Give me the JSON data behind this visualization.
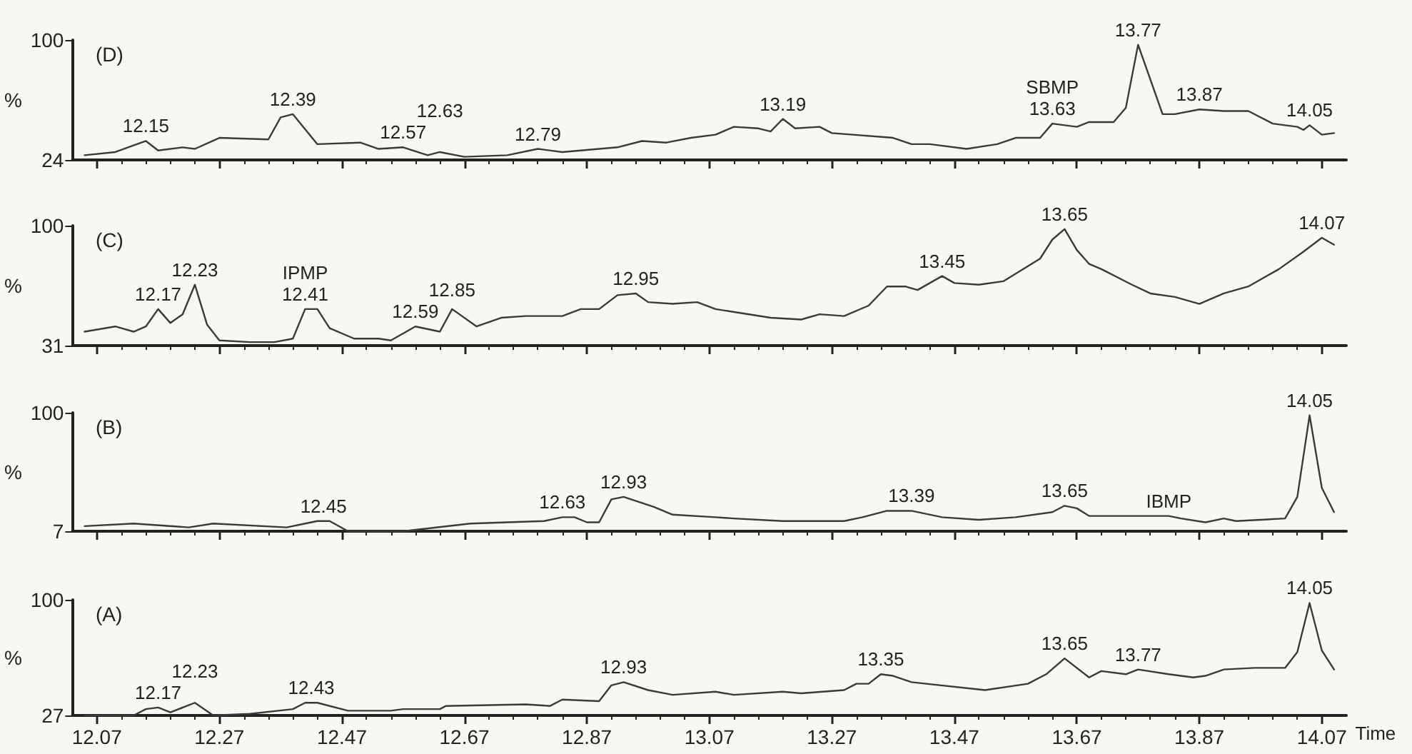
{
  "chart_data": [
    {
      "type": "line",
      "title": "(D)",
      "ylabel": "%",
      "color": "#3a3a3a",
      "marker": "none",
      "tick_labels": "y",
      "xlim": [
        12.03,
        14.11
      ],
      "ylim": [
        24,
        100
      ],
      "yticks": [
        24,
        100
      ],
      "xticks": [
        12.07,
        {
          "value": 12.11,
          "label": null
        },
        {
          "value": 12.15,
          "label": null
        },
        {
          "value": 12.19,
          "label": null
        },
        {
          "value": 12.23,
          "label": null
        },
        12.27,
        {
          "value": 12.31,
          "label": null
        },
        {
          "value": 12.35,
          "label": null
        },
        {
          "value": 12.39,
          "label": null
        },
        {
          "value": 12.43,
          "label": null
        },
        12.47,
        {
          "value": 12.51,
          "label": null
        },
        {
          "value": 12.55,
          "label": null
        },
        {
          "value": 12.59,
          "label": null
        },
        {
          "value": 12.63,
          "label": null
        },
        12.67,
        {
          "value": 12.71,
          "label": null
        },
        {
          "value": 12.75,
          "label": null
        },
        {
          "value": 12.79,
          "label": null
        },
        {
          "value": 12.83,
          "label": null
        },
        12.87,
        {
          "value": 12.91,
          "label": null
        },
        {
          "value": 12.95,
          "label": null
        },
        {
          "value": 12.99,
          "label": null
        },
        {
          "value": 13.03,
          "label": null
        },
        13.07,
        {
          "value": 13.11,
          "label": null
        },
        {
          "value": 13.15,
          "label": null
        },
        {
          "value": 13.19,
          "label": null
        },
        {
          "value": 13.23,
          "label": null
        },
        13.27,
        {
          "value": 13.31,
          "label": null
        },
        {
          "value": 13.35,
          "label": null
        },
        {
          "value": 13.39,
          "label": null
        },
        {
          "value": 13.43,
          "label": null
        },
        13.47,
        {
          "value": 13.51,
          "label": null
        },
        {
          "value": 13.55,
          "label": null
        },
        {
          "value": 13.59,
          "label": null
        },
        {
          "value": 13.63,
          "label": null
        },
        13.67,
        {
          "value": 13.71,
          "label": null
        },
        {
          "value": 13.75,
          "label": null
        },
        {
          "value": 13.79,
          "label": null
        },
        {
          "value": 13.83,
          "label": null
        },
        13.87,
        {
          "value": 13.91,
          "label": null
        },
        {
          "value": 13.95,
          "label": null
        },
        {
          "value": 13.99,
          "label": null
        },
        {
          "value": 14.03,
          "label": null
        },
        14.07
      ],
      "x": [
        12.05,
        12.1,
        12.15,
        12.17,
        12.21,
        12.23,
        12.27,
        12.35,
        12.37,
        12.39,
        12.43,
        12.5,
        12.53,
        12.57,
        12.61,
        12.63,
        12.67,
        12.74,
        12.79,
        12.83,
        12.92,
        12.96,
        13.0,
        13.04,
        13.08,
        13.11,
        13.15,
        13.17,
        13.19,
        13.21,
        13.25,
        13.27,
        13.37,
        13.4,
        13.43,
        13.49,
        13.54,
        13.57,
        13.61,
        13.63,
        13.67,
        13.69,
        13.73,
        13.75,
        13.77,
        13.81,
        13.83,
        13.87,
        13.91,
        13.95,
        13.99,
        14.03,
        14.04,
        14.05,
        14.07,
        14.09
      ],
      "values": [
        27,
        29,
        36,
        30,
        32,
        31,
        38,
        37,
        51,
        53,
        34,
        35,
        31,
        32,
        27,
        29,
        26,
        27,
        31,
        29,
        32,
        36,
        35,
        38,
        40,
        45,
        44,
        42,
        50,
        44,
        45,
        41,
        38,
        34,
        34,
        31,
        34,
        38,
        38,
        47,
        45,
        48,
        48,
        57,
        97,
        53,
        53,
        56,
        55,
        55,
        47,
        45,
        43,
        46,
        40,
        41
      ],
      "annotations": [
        {
          "text": "12.15",
          "x": 12.15,
          "y": 36
        },
        {
          "text": "12.39",
          "x": 12.39,
          "y": 53
        },
        {
          "text": "12.57",
          "x": 12.57,
          "y": 32
        },
        {
          "text": "12.63",
          "x": 12.63,
          "y": 29
        },
        {
          "text": "12.79",
          "x": 12.79,
          "y": 31
        },
        {
          "text": "13.19",
          "x": 13.19,
          "y": 50
        },
        {
          "text": "13.63",
          "x": 13.63,
          "y": 47
        },
        {
          "text": "SBMP",
          "x": 13.63,
          "y": 47
        },
        {
          "text": "13.77",
          "x": 13.77,
          "y": 97
        },
        {
          "text": "13.87",
          "x": 13.87,
          "y": 56
        },
        {
          "text": "14.05",
          "x": 14.05,
          "y": 46
        }
      ]
    },
    {
      "type": "line",
      "title": "(C)",
      "ylabel": "%",
      "color": "#3a3a3a",
      "marker": "none",
      "tick_labels": "y",
      "xlim": [
        12.03,
        14.11
      ],
      "ylim": [
        31,
        100
      ],
      "yticks": [
        31,
        100
      ],
      "xticks": [
        12.07,
        {
          "value": 12.11,
          "label": null
        },
        {
          "value": 12.15,
          "label": null
        },
        {
          "value": 12.19,
          "label": null
        },
        {
          "value": 12.23,
          "label": null
        },
        12.27,
        {
          "value": 12.31,
          "label": null
        },
        {
          "value": 12.35,
          "label": null
        },
        {
          "value": 12.39,
          "label": null
        },
        {
          "value": 12.43,
          "label": null
        },
        12.47,
        {
          "value": 12.51,
          "label": null
        },
        {
          "value": 12.55,
          "label": null
        },
        {
          "value": 12.59,
          "label": null
        },
        {
          "value": 12.63,
          "label": null
        },
        12.67,
        {
          "value": 12.71,
          "label": null
        },
        {
          "value": 12.75,
          "label": null
        },
        {
          "value": 12.79,
          "label": null
        },
        {
          "value": 12.83,
          "label": null
        },
        12.87,
        {
          "value": 12.91,
          "label": null
        },
        {
          "value": 12.95,
          "label": null
        },
        {
          "value": 12.99,
          "label": null
        },
        {
          "value": 13.03,
          "label": null
        },
        13.07,
        {
          "value": 13.11,
          "label": null
        },
        {
          "value": 13.15,
          "label": null
        },
        {
          "value": 13.19,
          "label": null
        },
        {
          "value": 13.23,
          "label": null
        },
        13.27,
        {
          "value": 13.31,
          "label": null
        },
        {
          "value": 13.35,
          "label": null
        },
        {
          "value": 13.39,
          "label": null
        },
        {
          "value": 13.43,
          "label": null
        },
        13.47,
        {
          "value": 13.51,
          "label": null
        },
        {
          "value": 13.55,
          "label": null
        },
        {
          "value": 13.59,
          "label": null
        },
        {
          "value": 13.63,
          "label": null
        },
        13.67,
        {
          "value": 13.71,
          "label": null
        },
        {
          "value": 13.75,
          "label": null
        },
        {
          "value": 13.79,
          "label": null
        },
        {
          "value": 13.83,
          "label": null
        },
        13.87,
        {
          "value": 13.91,
          "label": null
        },
        {
          "value": 13.95,
          "label": null
        },
        {
          "value": 13.99,
          "label": null
        },
        {
          "value": 14.03,
          "label": null
        },
        14.07
      ],
      "x": [
        12.05,
        12.1,
        12.13,
        12.15,
        12.17,
        12.19,
        12.21,
        12.23,
        12.25,
        12.27,
        12.32,
        12.36,
        12.39,
        12.41,
        12.43,
        12.45,
        12.49,
        12.53,
        12.55,
        12.57,
        12.59,
        12.63,
        12.65,
        12.69,
        12.73,
        12.77,
        12.83,
        12.86,
        12.89,
        12.92,
        12.95,
        12.97,
        13.01,
        13.05,
        13.08,
        13.17,
        13.22,
        13.25,
        13.29,
        13.33,
        13.36,
        13.39,
        13.41,
        13.45,
        13.47,
        13.51,
        13.55,
        13.61,
        13.63,
        13.65,
        13.67,
        13.69,
        13.71,
        13.76,
        13.79,
        13.83,
        13.87,
        13.91,
        13.95,
        14.0,
        14.04,
        14.07,
        14.09
      ],
      "values": [
        39,
        42,
        39,
        42,
        52,
        44,
        49,
        66,
        43,
        34,
        33,
        33,
        35,
        52,
        52,
        41,
        35,
        35,
        34,
        38,
        42,
        39,
        52,
        42,
        47,
        48,
        48,
        52,
        52,
        60,
        61,
        56,
        55,
        56,
        52,
        47,
        46,
        49,
        48,
        54,
        65,
        65,
        63,
        71,
        67,
        66,
        68,
        81,
        92,
        98,
        86,
        78,
        75,
        66,
        61,
        59,
        55,
        61,
        65,
        75,
        85,
        93,
        89
      ],
      "annotations": [
        {
          "text": "12.17",
          "x": 12.17,
          "y": 52
        },
        {
          "text": "12.23",
          "x": 12.23,
          "y": 66
        },
        {
          "text": "12.41",
          "x": 12.41,
          "y": 52
        },
        {
          "text": "IPMP",
          "x": 12.41,
          "y": 52
        },
        {
          "text": "12.59",
          "x": 12.59,
          "y": 42
        },
        {
          "text": "12.85",
          "x": 12.65,
          "y": 52
        },
        {
          "text": "12.95",
          "x": 12.95,
          "y": 61
        },
        {
          "text": "13.45",
          "x": 13.45,
          "y": 71
        },
        {
          "text": "13.65",
          "x": 13.65,
          "y": 98
        },
        {
          "text": "14.07",
          "x": 14.07,
          "y": 93
        }
      ]
    },
    {
      "type": "line",
      "title": "(B)",
      "ylabel": "%",
      "color": "#3a3a3a",
      "marker": "none",
      "tick_labels": "y",
      "xlim": [
        12.03,
        14.11
      ],
      "ylim": [
        7,
        100
      ],
      "yticks": [
        7,
        100
      ],
      "xticks": [
        12.07,
        {
          "value": 12.11,
          "label": null
        },
        {
          "value": 12.15,
          "label": null
        },
        {
          "value": 12.19,
          "label": null
        },
        {
          "value": 12.23,
          "label": null
        },
        12.27,
        {
          "value": 12.31,
          "label": null
        },
        {
          "value": 12.35,
          "label": null
        },
        {
          "value": 12.39,
          "label": null
        },
        {
          "value": 12.43,
          "label": null
        },
        12.47,
        {
          "value": 12.51,
          "label": null
        },
        {
          "value": 12.55,
          "label": null
        },
        {
          "value": 12.59,
          "label": null
        },
        {
          "value": 12.63,
          "label": null
        },
        12.67,
        {
          "value": 12.71,
          "label": null
        },
        {
          "value": 12.75,
          "label": null
        },
        {
          "value": 12.79,
          "label": null
        },
        {
          "value": 12.83,
          "label": null
        },
        12.87,
        {
          "value": 12.91,
          "label": null
        },
        {
          "value": 12.95,
          "label": null
        },
        {
          "value": 12.99,
          "label": null
        },
        {
          "value": 13.03,
          "label": null
        },
        13.07,
        {
          "value": 13.11,
          "label": null
        },
        {
          "value": 13.15,
          "label": null
        },
        {
          "value": 13.19,
          "label": null
        },
        {
          "value": 13.23,
          "label": null
        },
        13.27,
        {
          "value": 13.31,
          "label": null
        },
        {
          "value": 13.35,
          "label": null
        },
        {
          "value": 13.39,
          "label": null
        },
        {
          "value": 13.43,
          "label": null
        },
        13.47,
        {
          "value": 13.51,
          "label": null
        },
        {
          "value": 13.55,
          "label": null
        },
        {
          "value": 13.59,
          "label": null
        },
        {
          "value": 13.63,
          "label": null
        },
        13.67,
        {
          "value": 13.71,
          "label": null
        },
        {
          "value": 13.75,
          "label": null
        },
        {
          "value": 13.79,
          "label": null
        },
        {
          "value": 13.83,
          "label": null
        },
        13.87,
        {
          "value": 13.91,
          "label": null
        },
        {
          "value": 13.95,
          "label": null
        },
        {
          "value": 13.99,
          "label": null
        },
        {
          "value": 14.03,
          "label": null
        },
        14.07
      ],
      "x": [
        12.05,
        12.13,
        12.22,
        12.26,
        12.38,
        12.41,
        12.43,
        12.45,
        12.48,
        12.57,
        12.68,
        12.8,
        12.83,
        12.85,
        12.87,
        12.89,
        12.91,
        12.93,
        12.98,
        13.01,
        13.08,
        13.11,
        13.19,
        13.29,
        13.32,
        13.36,
        13.4,
        13.45,
        13.51,
        13.57,
        13.63,
        13.65,
        13.67,
        13.69,
        13.76,
        13.82,
        13.84,
        13.88,
        13.91,
        13.93,
        14.01,
        14.03,
        14.05,
        14.07,
        14.09
      ],
      "values": [
        11,
        13,
        10,
        13,
        10,
        13,
        15,
        15,
        7,
        7,
        13,
        15,
        18,
        18,
        14,
        14,
        32,
        34,
        26,
        20,
        18,
        17,
        15,
        15,
        18,
        23,
        23,
        18,
        16,
        18,
        22,
        27,
        25,
        19,
        19,
        19,
        17,
        14,
        17,
        15,
        17,
        34,
        98,
        41,
        22
      ],
      "annotations": [
        {
          "text": "12.45",
          "x": 12.44,
          "y": 15
        },
        {
          "text": "12.63",
          "x": 12.83,
          "y": 18
        },
        {
          "text": "12.93",
          "x": 12.93,
          "y": 34
        },
        {
          "text": "13.39",
          "x": 13.4,
          "y": 23
        },
        {
          "text": "13.65",
          "x": 13.65,
          "y": 27
        },
        {
          "text": "IBMP",
          "x": 13.82,
          "y": 19
        },
        {
          "text": "14.05",
          "x": 14.05,
          "y": 98
        }
      ]
    },
    {
      "type": "line",
      "title": "(A)",
      "ylabel": "%",
      "xlabel": "Time",
      "color": "#3a3a3a",
      "marker": "none",
      "xlim": [
        12.03,
        14.11
      ],
      "ylim": [
        27,
        100
      ],
      "yticks": [
        27,
        100
      ],
      "xticks": [
        12.07,
        {
          "value": 12.11,
          "label": null
        },
        {
          "value": 12.15,
          "label": null
        },
        {
          "value": 12.19,
          "label": null
        },
        {
          "value": 12.23,
          "label": null
        },
        12.27,
        {
          "value": 12.31,
          "label": null
        },
        {
          "value": 12.35,
          "label": null
        },
        {
          "value": 12.39,
          "label": null
        },
        {
          "value": 12.43,
          "label": null
        },
        12.47,
        {
          "value": 12.51,
          "label": null
        },
        {
          "value": 12.55,
          "label": null
        },
        {
          "value": 12.59,
          "label": null
        },
        {
          "value": 12.63,
          "label": null
        },
        12.67,
        {
          "value": 12.71,
          "label": null
        },
        {
          "value": 12.75,
          "label": null
        },
        {
          "value": 12.79,
          "label": null
        },
        {
          "value": 12.83,
          "label": null
        },
        12.87,
        {
          "value": 12.91,
          "label": null
        },
        {
          "value": 12.95,
          "label": null
        },
        {
          "value": 12.99,
          "label": null
        },
        {
          "value": 13.03,
          "label": null
        },
        13.07,
        {
          "value": 13.11,
          "label": null
        },
        {
          "value": 13.15,
          "label": null
        },
        {
          "value": 13.19,
          "label": null
        },
        {
          "value": 13.23,
          "label": null
        },
        13.27,
        {
          "value": 13.31,
          "label": null
        },
        {
          "value": 13.35,
          "label": null
        },
        {
          "value": 13.39,
          "label": null
        },
        {
          "value": 13.43,
          "label": null
        },
        13.47,
        {
          "value": 13.51,
          "label": null
        },
        {
          "value": 13.55,
          "label": null
        },
        {
          "value": 13.59,
          "label": null
        },
        {
          "value": 13.63,
          "label": null
        },
        13.67,
        {
          "value": 13.71,
          "label": null
        },
        {
          "value": 13.75,
          "label": null
        },
        {
          "value": 13.79,
          "label": null
        },
        {
          "value": 13.83,
          "label": null
        },
        13.87,
        {
          "value": 13.91,
          "label": null
        },
        {
          "value": 13.95,
          "label": null
        },
        {
          "value": 13.99,
          "label": null
        },
        {
          "value": 14.03,
          "label": null
        },
        14.07
      ],
      "x": [
        12.05,
        12.13,
        12.15,
        12.17,
        12.19,
        12.23,
        12.26,
        12.32,
        12.39,
        12.41,
        12.43,
        12.48,
        12.55,
        12.57,
        12.63,
        12.64,
        12.77,
        12.81,
        12.83,
        12.89,
        12.91,
        12.93,
        12.97,
        13.01,
        13.08,
        13.11,
        13.19,
        13.22,
        13.29,
        13.31,
        13.33,
        13.35,
        13.37,
        13.4,
        13.52,
        13.59,
        13.62,
        13.65,
        13.69,
        13.71,
        13.75,
        13.77,
        13.82,
        13.86,
        13.88,
        13.91,
        13.96,
        14.01,
        14.03,
        14.05,
        14.07,
        14.09
      ],
      "values": [
        27,
        27,
        31,
        32,
        29,
        35,
        27,
        28,
        31,
        35,
        35,
        30,
        30,
        31,
        31,
        33,
        34,
        33,
        37,
        36,
        46,
        48,
        43,
        40,
        42,
        40,
        42,
        41,
        43,
        47,
        47,
        53,
        52,
        48,
        43,
        47,
        53,
        63,
        51,
        55,
        53,
        56,
        53,
        51,
        52,
        56,
        57,
        57,
        67,
        98,
        68,
        56
      ],
      "annotations": [
        {
          "text": "12.17",
          "x": 12.17,
          "y": 32
        },
        {
          "text": "12.23",
          "x": 12.23,
          "y": 35
        },
        {
          "text": "12.43",
          "x": 12.42,
          "y": 35
        },
        {
          "text": "12.93",
          "x": 12.93,
          "y": 48
        },
        {
          "text": "13.35",
          "x": 13.35,
          "y": 53
        },
        {
          "text": "13.65",
          "x": 13.65,
          "y": 63
        },
        {
          "text": "13.77",
          "x": 13.77,
          "y": 56
        },
        {
          "text": "14.05",
          "x": 14.05,
          "y": 98
        }
      ]
    }
  ]
}
